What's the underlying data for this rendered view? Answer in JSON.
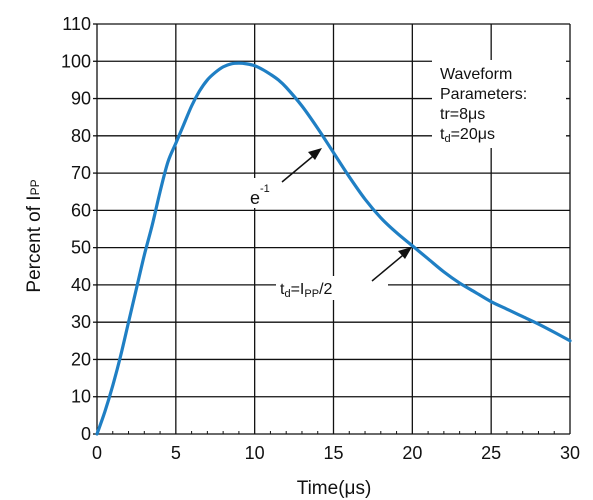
{
  "chart_data": {
    "type": "line",
    "xlabel": "Time(μs)",
    "ylabel_main": "Percent of I",
    "ylabel_sub": "PP",
    "xlim": [
      0,
      30
    ],
    "ylim": [
      0,
      110
    ],
    "x_ticks": [
      0,
      5,
      10,
      15,
      20,
      25,
      30
    ],
    "y_ticks": [
      0,
      10,
      20,
      30,
      40,
      50,
      60,
      70,
      80,
      90,
      100,
      110
    ],
    "grid": true,
    "series": [
      {
        "color": "#1f7fc4",
        "x": [
          0,
          0.5,
          1,
          1.5,
          2,
          2.5,
          3,
          3.5,
          4,
          4.5,
          5,
          5.5,
          6,
          6.5,
          7,
          7.5,
          8,
          8.5,
          9,
          9.5,
          10,
          10.5,
          11,
          11.5,
          12,
          13,
          14,
          15,
          16,
          17,
          18,
          19,
          20,
          21,
          22,
          23,
          24,
          25,
          26,
          27,
          28,
          29,
          30
        ],
        "y": [
          0,
          6,
          13,
          21,
          30,
          39,
          48,
          56,
          65,
          73,
          78,
          83,
          88,
          92,
          95,
          97,
          98.5,
          99.3,
          99.5,
          99.3,
          98.8,
          97.8,
          96.5,
          95,
          93,
          88,
          82,
          75.5,
          69,
          63,
          58,
          54,
          50.5,
          47,
          43.5,
          40.5,
          38,
          35.5,
          33.5,
          31.5,
          29.5,
          27.3,
          25
        ]
      }
    ],
    "annotations": {
      "e_base": "e",
      "e_exp": "-1",
      "td_pre": "t",
      "td_sub": "d",
      "td_eq": "=I",
      "td_sub2": "PP",
      "td_post": "/2",
      "params_line1": "Waveform",
      "params_line2": "Parameters:",
      "params_line3": "tr=8μs",
      "params_line4_pre": "t",
      "params_line4_sub": "d",
      "params_line4_post": "=20μs"
    }
  }
}
